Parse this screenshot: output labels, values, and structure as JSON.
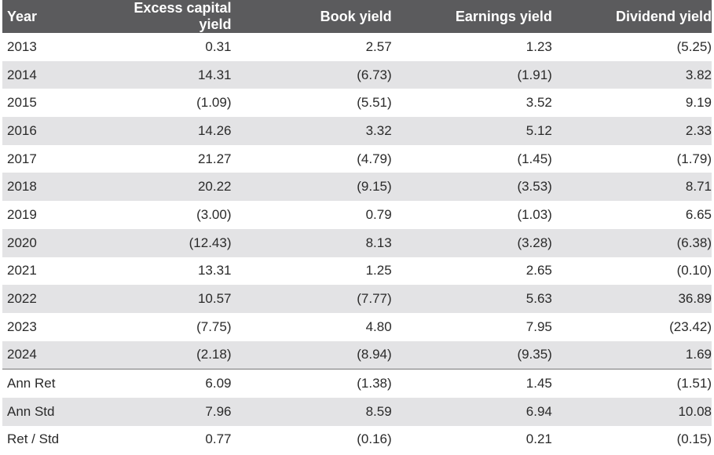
{
  "table": {
    "headers": [
      "Year",
      "Excess capital yield",
      "Book yield",
      "Earnings yield",
      "Dividend yield"
    ],
    "rows": [
      [
        "2013",
        "0.31",
        "2.57",
        "1.23",
        "(5.25)"
      ],
      [
        "2014",
        "14.31",
        "(6.73)",
        "(1.91)",
        "3.82"
      ],
      [
        "2015",
        "(1.09)",
        "(5.51)",
        "3.52",
        "9.19"
      ],
      [
        "2016",
        "14.26",
        "3.32",
        "5.12",
        "2.33"
      ],
      [
        "2017",
        "21.27",
        "(4.79)",
        "(1.45)",
        "(1.79)"
      ],
      [
        "2018",
        "20.22",
        "(9.15)",
        "(3.53)",
        "8.71"
      ],
      [
        "2019",
        "(3.00)",
        "0.79",
        "(1.03)",
        "6.65"
      ],
      [
        "2020",
        "(12.43)",
        "8.13",
        "(3.28)",
        "(6.38)"
      ],
      [
        "2021",
        "13.31",
        "1.25",
        "2.65",
        "(0.10)"
      ],
      [
        "2022",
        "10.57",
        "(7.77)",
        "5.63",
        "36.89"
      ],
      [
        "2023",
        "(7.75)",
        "4.80",
        "7.95",
        "(23.42)"
      ],
      [
        "2024",
        "(2.18)",
        "(8.94)",
        "(9.35)",
        "1.69"
      ]
    ],
    "summary": [
      [
        "Ann Ret",
        "6.09",
        "(1.38)",
        "1.45",
        "(1.51)"
      ],
      [
        "Ann Std",
        "7.96",
        "8.59",
        "6.94",
        "10.08"
      ],
      [
        "Ret / Std",
        "0.77",
        "(0.16)",
        "0.21",
        "(0.15)"
      ]
    ],
    "colors": {
      "header_bg": "#5b5b5d",
      "header_text": "#ffffff",
      "stripe": "#e3e3e5",
      "divider": "#777777"
    }
  }
}
